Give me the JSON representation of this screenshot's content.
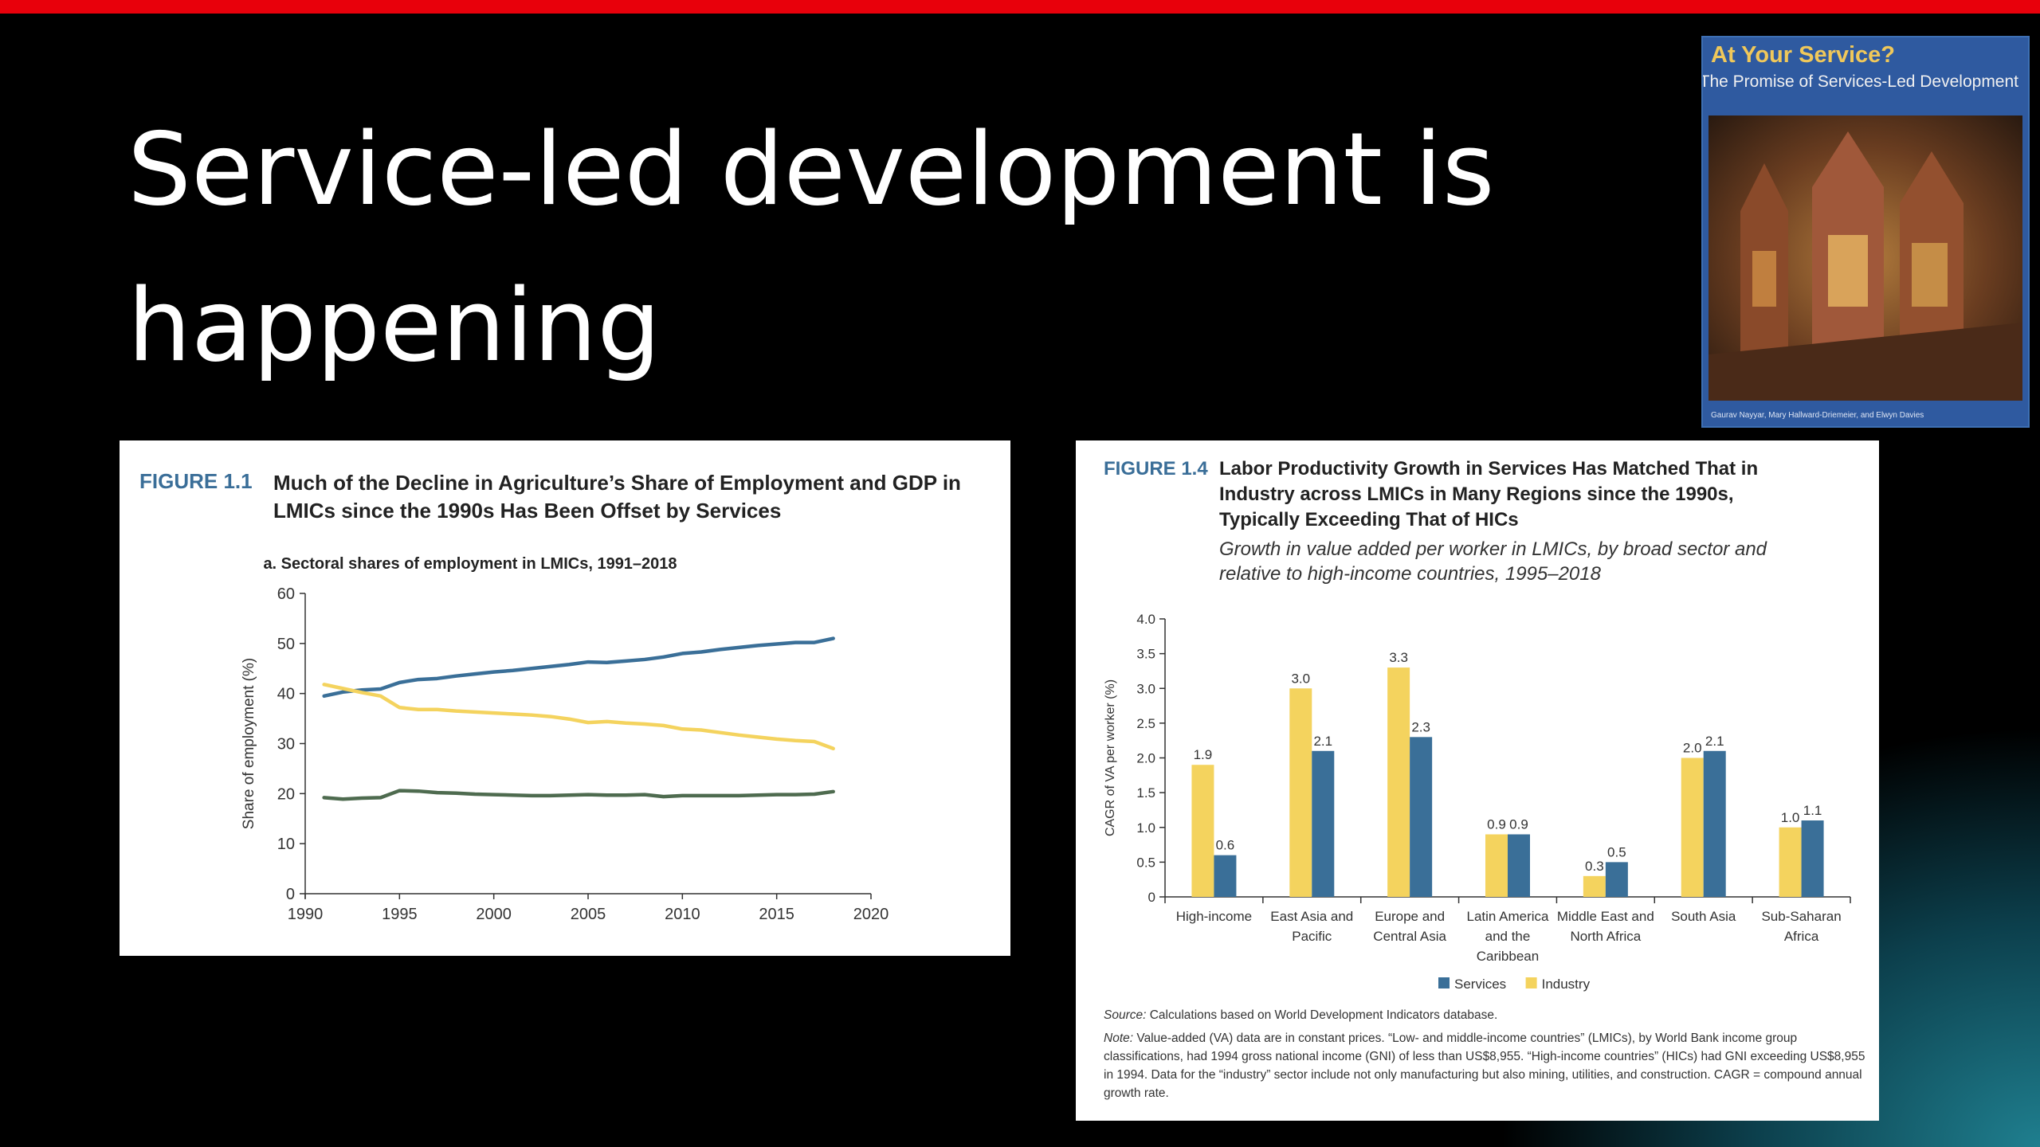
{
  "colors": {
    "red_bar": "#e8000b",
    "services": "#3a6f98",
    "industry": "#f4d35e",
    "agriculture": "#4e6b4f",
    "figure_label": "#3a6e98"
  },
  "slide": {
    "title": "Service-led development is happening"
  },
  "book_cover": {
    "title": "At Your Service?",
    "subtitle": "The Promise of Services-Led Development",
    "authors": "Gaurav Nayyar, Mary Hallward-Driemeier, and Elwyn Davies"
  },
  "figure_1_1": {
    "label": "FIGURE 1.1",
    "title": "Much of the Decline in Agriculture’s Share of Employment and GDP in LMICs since the 1990s Has Been Offset by Services"
  },
  "figure_1_4": {
    "label": "FIGURE 1.4",
    "title": "Labor Productivity Growth in Services Has Matched That in Industry across LMICs in Many Regions since the 1990s, Typically Exceeding That of HICs",
    "subtitle": "Growth in value added per worker in LMICs, by broad sector and relative to high-income countries, 1995–2018",
    "source_label": "Source:",
    "source": "Calculations based on World Development Indicators database.",
    "note_label": "Note:",
    "note": "Value-added (VA) data are in constant prices. “Low- and middle-income countries” (LMICs), by World Bank income group classifications, had 1994 gross national income (GNI) of less than US$8,955. “High-income countries” (HICs) had GNI exceeding US$8,955 in 1994. Data for the “industry” sector include not only manufacturing but also mining, utilities, and construction. CAGR = compound annual growth rate."
  },
  "chart_data": [
    {
      "type": "line",
      "title": "a. Sectoral shares of employment in LMICs, 1991–2018",
      "xlabel": "",
      "ylabel": "Share of employment (%)",
      "xlim": [
        1990,
        2020
      ],
      "ylim": [
        0,
        60
      ],
      "xticks": [
        "1990",
        "1995",
        "2000",
        "2005",
        "2010",
        "2015",
        "2020"
      ],
      "yticks": [
        "0",
        "10",
        "20",
        "30",
        "40",
        "50",
        "60"
      ],
      "x": [
        1991,
        1992,
        1993,
        1994,
        1995,
        1996,
        1997,
        1998,
        1999,
        2000,
        2001,
        2002,
        2003,
        2004,
        2005,
        2006,
        2007,
        2008,
        2009,
        2010,
        2011,
        2012,
        2013,
        2014,
        2015,
        2016,
        2017,
        2018
      ],
      "series": [
        {
          "key": "services",
          "color": "#3a6f98",
          "values": [
            39.5,
            40.3,
            40.7,
            40.9,
            42.2,
            42.8,
            43.0,
            43.5,
            43.9,
            44.3,
            44.6,
            45.0,
            45.4,
            45.8,
            46.3,
            46.2,
            46.5,
            46.8,
            47.3,
            48.0,
            48.3,
            48.8,
            49.2,
            49.6,
            49.9,
            50.2,
            50.2,
            51.0
          ]
        },
        {
          "key": "industry",
          "color": "#f4d35e",
          "values": [
            41.8,
            41.0,
            40.2,
            39.5,
            37.2,
            36.8,
            36.8,
            36.5,
            36.3,
            36.1,
            35.9,
            35.7,
            35.4,
            34.9,
            34.2,
            34.4,
            34.1,
            33.9,
            33.6,
            32.9,
            32.7,
            32.2,
            31.7,
            31.3,
            30.9,
            30.6,
            30.4,
            29.0
          ]
        },
        {
          "key": "agriculture",
          "color": "#4e6b4f",
          "values": [
            19.2,
            18.9,
            19.1,
            19.2,
            20.6,
            20.5,
            20.2,
            20.1,
            19.9,
            19.8,
            19.7,
            19.6,
            19.6,
            19.7,
            19.8,
            19.7,
            19.7,
            19.8,
            19.4,
            19.6,
            19.6,
            19.6,
            19.6,
            19.7,
            19.8,
            19.8,
            19.9,
            20.4
          ]
        }
      ],
      "grid": false,
      "legend": "none"
    },
    {
      "type": "bar",
      "ylabel": "CAGR of VA per worker (%)",
      "ylim": [
        0,
        4.0
      ],
      "yticks": [
        "0",
        "0.5",
        "1.0",
        "1.5",
        "2.0",
        "2.5",
        "3.0",
        "3.5",
        "4.0"
      ],
      "categories": [
        [
          "High-income"
        ],
        [
          "East Asia and",
          "Pacific"
        ],
        [
          "Europe and",
          "Central Asia"
        ],
        [
          "Latin America",
          "and the",
          "Caribbean"
        ],
        [
          "Middle East and",
          "North Africa"
        ],
        [
          "South Asia"
        ],
        [
          "Sub-Saharan",
          "Africa"
        ]
      ],
      "series": [
        {
          "name": "Industry",
          "color": "#f4d35e",
          "values": [
            1.9,
            3.0,
            3.3,
            0.9,
            0.3,
            2.0,
            1.0
          ],
          "labels": [
            "1.9",
            "3.0",
            "3.3",
            "0.9",
            "0.3",
            "2.0",
            "1.0"
          ]
        },
        {
          "name": "Services",
          "color": "#3a6f98",
          "values": [
            0.6,
            2.1,
            2.3,
            0.9,
            0.5,
            2.1,
            1.1
          ],
          "labels": [
            "0.6",
            "2.1",
            "2.3",
            "0.9",
            "0.5",
            "2.1",
            "1.1"
          ]
        }
      ],
      "legend_order": [
        "Services",
        "Industry"
      ],
      "legend_position": "bottom",
      "grid": false
    }
  ]
}
